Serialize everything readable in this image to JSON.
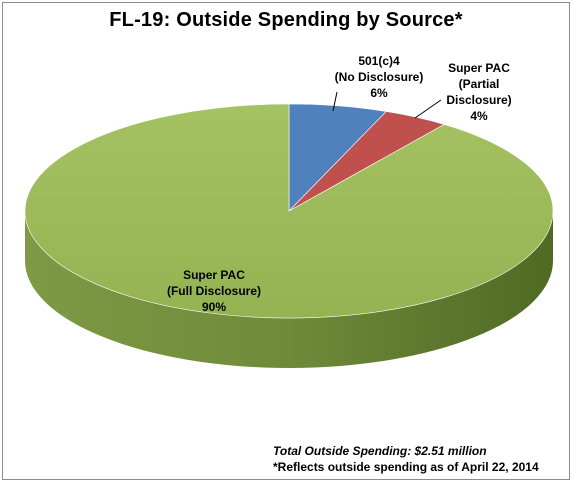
{
  "chart_data": {
    "type": "pie",
    "title": "FL-19: Outside Spending by Source*",
    "slices": [
      {
        "name": "501(c)4 (No Disclosure)",
        "label_lines": [
          "501(c)4",
          "(No Disclosure)",
          "6%"
        ],
        "value": 6,
        "color": "#4f81bd"
      },
      {
        "name": "Super PAC (Partial Disclosure)",
        "label_lines": [
          "Super PAC",
          "(Partial",
          "Disclosure)",
          "4%"
        ],
        "value": 4,
        "color": "#c0504d"
      },
      {
        "name": "Super PAC (Full Disclosure)",
        "label_lines": [
          "Super PAC",
          "(Full Disclosure)",
          "90%"
        ],
        "value": 90,
        "color": "#9bbb59"
      }
    ],
    "style": "3d-pie",
    "legend": "none"
  },
  "footnote": {
    "total": "Total Outside Spending: $2.51 million",
    "note": "*Reflects outside spending as of April 22, 2014"
  }
}
